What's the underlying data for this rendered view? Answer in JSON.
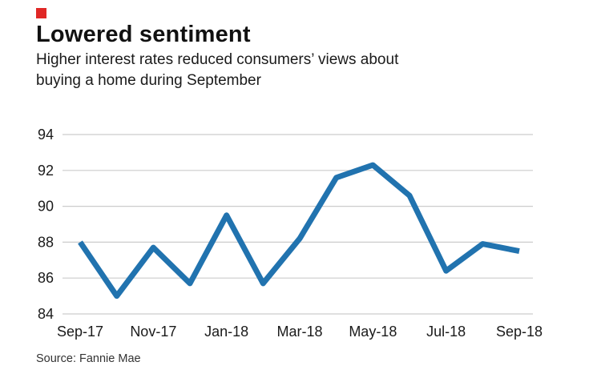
{
  "colors": {
    "brand_red": "#e02826",
    "line": "#2173af",
    "grid": "#cccccc"
  },
  "header": {
    "title": "Lowered sentiment",
    "subtitle_lines": [
      "Higher interest rates reduced consumers’ views about",
      "buying a home during September"
    ]
  },
  "source": {
    "text": "Source: Fannie Mae"
  },
  "chart_data": {
    "type": "line",
    "title": "Lowered sentiment",
    "subtitle": "Higher interest rates reduced consumers’ views about buying a home during September",
    "x": [
      "Sep-17",
      "Oct-17",
      "Nov-17",
      "Dec-17",
      "Jan-18",
      "Feb-18",
      "Mar-18",
      "Apr-18",
      "May-18",
      "Jun-18",
      "Jul-18",
      "Aug-18",
      "Sep-18"
    ],
    "values": [
      88.0,
      85.0,
      87.7,
      85.7,
      89.5,
      85.7,
      88.2,
      91.6,
      92.3,
      90.6,
      86.4,
      87.9,
      87.5
    ],
    "x_tick_labels": [
      "Sep-17",
      "Nov-17",
      "Jan-18",
      "Mar-18",
      "May-18",
      "Jul-18",
      "Sep-18"
    ],
    "y_ticks": [
      84,
      86,
      88,
      90,
      92,
      94
    ],
    "ylim": [
      84,
      94
    ],
    "xlabel": "",
    "ylabel": "",
    "grid": "horizontal",
    "legend": "none"
  }
}
